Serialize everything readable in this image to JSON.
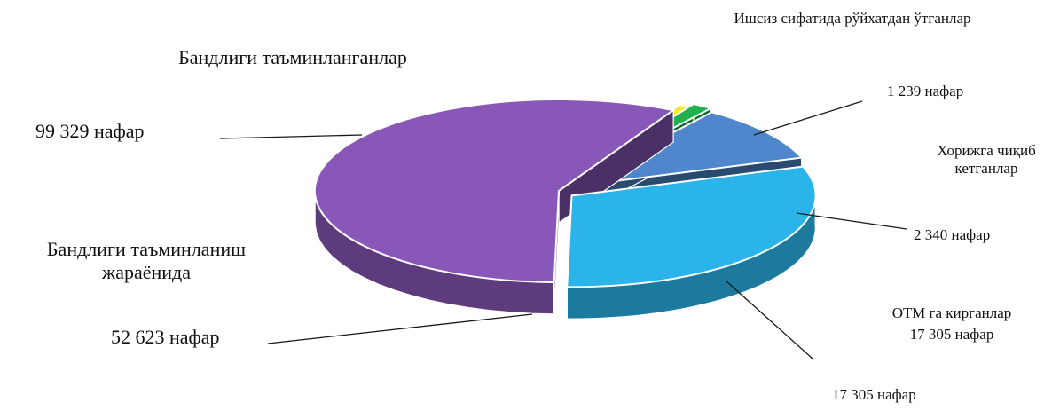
{
  "chart_data": {
    "type": "pie",
    "style": "3d-exploded",
    "slices": [
      {
        "key": "employed",
        "label": "Бандлиги таъминланганлар",
        "value": 99329,
        "value_label": "99 329 нафар",
        "color": "#8957b8"
      },
      {
        "key": "in_process",
        "label": "Бандлиги таъминланиш жараёнида",
        "value": 52623,
        "value_label": "52 623 нафар",
        "color": "#2bb4ea"
      },
      {
        "key": "university",
        "label": "ОТМ га кирганлар",
        "value": 17305,
        "value_label": "17 305 нафар",
        "color": "#4f86cc",
        "label_value_text": "17 305 нафар"
      },
      {
        "key": "abroad",
        "label": "Хорижга чиқиб кетганлар",
        "value": 2340,
        "value_label": "2 340 нафар",
        "color": "#22b04f"
      },
      {
        "key": "unemployed",
        "label": "Ишсиз сифатида рўйхатдан ўтганлар",
        "value": 1239,
        "value_label": "1 239 нафар",
        "color": "#f0ec2a"
      }
    ]
  }
}
